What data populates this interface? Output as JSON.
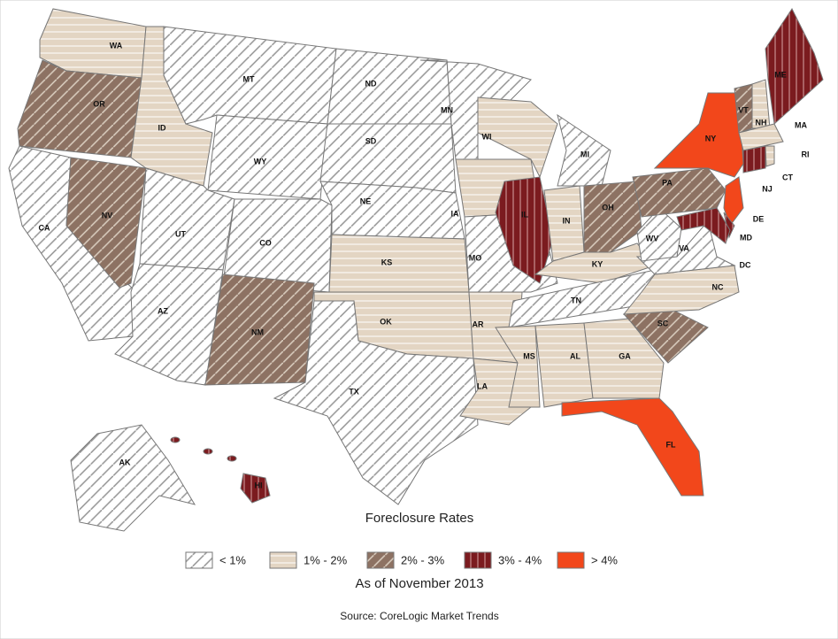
{
  "title": "Foreclosure Rates",
  "subtitle": "As of November 2013",
  "source": "Source: CoreLogic Market Trends",
  "legend": [
    {
      "label": "< 1%",
      "color": "#ffffff"
    },
    {
      "label": "1% - 2%",
      "color": "#e3d5c3"
    },
    {
      "label": "2% - 3%",
      "color": "#8d7263"
    },
    {
      "label": "3% - 4%",
      "color": "#7b1b1f"
    },
    {
      "label": "> 4%",
      "color": "#f2471b"
    }
  ],
  "states": [
    {
      "label": "WA",
      "rate": "1% - 2%"
    },
    {
      "label": "OR",
      "rate": "2% - 3%"
    },
    {
      "label": "CA",
      "rate": "< 1%"
    },
    {
      "label": "NV",
      "rate": "2% - 3%"
    },
    {
      "label": "ID",
      "rate": "1% - 2%"
    },
    {
      "label": "MT",
      "rate": "< 1%"
    },
    {
      "label": "WY",
      "rate": "< 1%"
    },
    {
      "label": "UT",
      "rate": "< 1%"
    },
    {
      "label": "CO",
      "rate": "< 1%"
    },
    {
      "label": "AZ",
      "rate": "< 1%"
    },
    {
      "label": "NM",
      "rate": "2% - 3%"
    },
    {
      "label": "ND",
      "rate": "< 1%"
    },
    {
      "label": "SD",
      "rate": "< 1%"
    },
    {
      "label": "NE",
      "rate": "< 1%"
    },
    {
      "label": "KS",
      "rate": "1% - 2%"
    },
    {
      "label": "OK",
      "rate": "1% - 2%"
    },
    {
      "label": "TX",
      "rate": "< 1%"
    },
    {
      "label": "MN",
      "rate": "< 1%"
    },
    {
      "label": "IA",
      "rate": "1% - 2%"
    },
    {
      "label": "MO",
      "rate": "< 1%"
    },
    {
      "label": "AR",
      "rate": "1% - 2%"
    },
    {
      "label": "LA",
      "rate": "1% - 2%"
    },
    {
      "label": "WI",
      "rate": "1% - 2%"
    },
    {
      "label": "IL",
      "rate": "3% - 4%"
    },
    {
      "label": "MI",
      "rate": "< 1%"
    },
    {
      "label": "IN",
      "rate": "1% - 2%"
    },
    {
      "label": "OH",
      "rate": "2% - 3%"
    },
    {
      "label": "KY",
      "rate": "1% - 2%"
    },
    {
      "label": "TN",
      "rate": "< 1%"
    },
    {
      "label": "MS",
      "rate": "1% - 2%"
    },
    {
      "label": "AL",
      "rate": "1% - 2%"
    },
    {
      "label": "GA",
      "rate": "1% - 2%"
    },
    {
      "label": "FL",
      "rate": "> 4%"
    },
    {
      "label": "SC",
      "rate": "2% - 3%"
    },
    {
      "label": "NC",
      "rate": "1% - 2%"
    },
    {
      "label": "VA",
      "rate": "< 1%"
    },
    {
      "label": "WV",
      "rate": "< 1%"
    },
    {
      "label": "PA",
      "rate": "2% - 3%"
    },
    {
      "label": "NY",
      "rate": "> 4%"
    },
    {
      "label": "NJ",
      "rate": "> 4%"
    },
    {
      "label": "DE",
      "rate": "3% - 4%"
    },
    {
      "label": "MD",
      "rate": "3% - 4%"
    },
    {
      "label": "DC"
    },
    {
      "label": "VT",
      "rate": "2% - 3%"
    },
    {
      "label": "NH",
      "rate": "1% - 2%"
    },
    {
      "label": "ME",
      "rate": "3% - 4%"
    },
    {
      "label": "MA",
      "rate": "1% - 2%"
    },
    {
      "label": "CT",
      "rate": "3% - 4%"
    },
    {
      "label": "RI",
      "rate": "1% - 2%"
    },
    {
      "label": "AK",
      "rate": "< 1%"
    },
    {
      "label": "HI",
      "rate": "3% - 4%"
    }
  ]
}
